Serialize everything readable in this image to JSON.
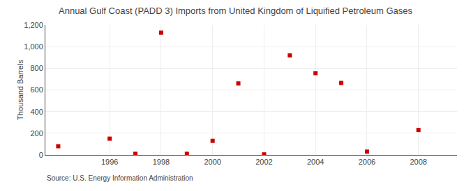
{
  "chart_data": {
    "type": "scatter",
    "title": "Annual Gulf Coast (PADD 3) Imports from United Kingdom of Liquified Petroleum Gases",
    "ylabel": "Thousand Barrels",
    "annotations": [
      "Source: U.S. Energy Information Administration"
    ],
    "x": [
      1994,
      1996,
      1997,
      1998,
      1999,
      2000,
      2001,
      2002,
      2003,
      2004,
      2005,
      2006,
      2008
    ],
    "values": [
      80,
      150,
      10,
      1130,
      10,
      130,
      660,
      5,
      920,
      755,
      665,
      30,
      230
    ],
    "color": "#cc0000",
    "marker": "square",
    "xlim": [
      1993.5,
      2009.5
    ],
    "xticks": [
      1996,
      1998,
      2000,
      2002,
      2004,
      2006,
      2008
    ],
    "ylim": [
      0,
      1200
    ],
    "yticks": [
      0,
      200,
      400,
      600,
      800,
      {
        "value": 1000,
        "label": "1,000"
      },
      {
        "value": 1200,
        "label": "1,200"
      }
    ],
    "grid": true
  }
}
